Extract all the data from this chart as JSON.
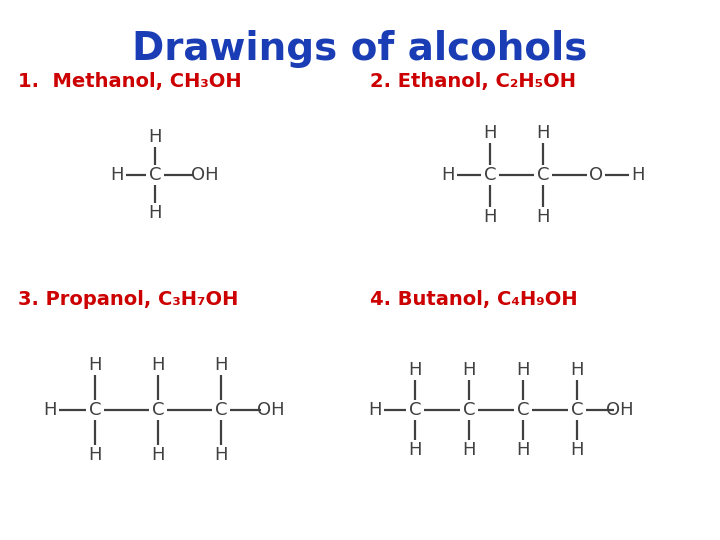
{
  "title": "Drawings of alcohols",
  "title_color": "#1a3db5",
  "title_fontsize": 28,
  "label_color": "#cc0000",
  "label_fontsize": 14,
  "molecule_color": "#404040",
  "molecule_fontsize": 13,
  "bond_color": "#404040",
  "bg_color": "#ffffff",
  "labels": [
    "1.  Methanol, CH₃OH",
    "2. Ethanol, C₂H₅OH",
    "3. Propanol, C₃H₇OH",
    "4. Butanol, C₄H₉OH"
  ]
}
